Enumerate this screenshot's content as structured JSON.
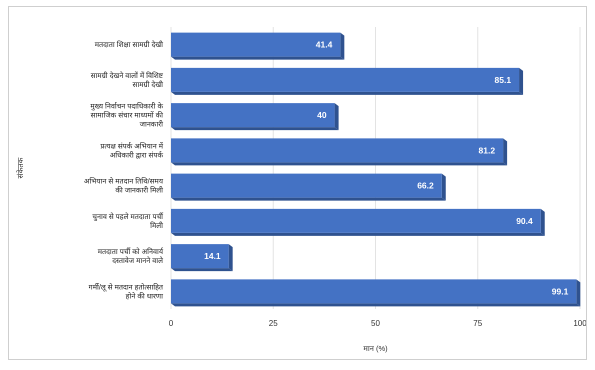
{
  "chart_data": {
    "type": "bar",
    "orientation": "horizontal",
    "title": "",
    "xlabel": "मान (%)",
    "ylabel": "संकेतक",
    "xlim": [
      0,
      100
    ],
    "x_ticks": [
      "0",
      "25",
      "50",
      "75",
      "100"
    ],
    "grid": true,
    "categories": [
      [
        "मतदाता शिक्षा सामग्री देखी"
      ],
      [
        "सामग्री देखने वालों में विशिष्ट",
        "सामग्री देखी"
      ],
      [
        "मुख्य निर्वाचन पदाधिकारी के",
        "सामाजिक संचार माध्यमों की",
        "जानकारी"
      ],
      [
        "प्रत्यक्ष संपर्क अभियान में",
        "अधिकारी द्वारा संपर्क"
      ],
      [
        "अभियान से मतदान तिथि/समय",
        "की जानकारी मिली"
      ],
      [
        "चुनाव से पहले मतदाता पर्ची",
        "मिली"
      ],
      [
        "मतदाता पर्ची को अनिवार्य",
        "दस्तावेज मानने वाले"
      ],
      [
        "गर्मी/लू से मतदान हतोत्साहित",
        "होने की धारणा"
      ]
    ],
    "values": [
      41.4,
      85.1,
      40,
      81.2,
      66.2,
      90.4,
      14.1,
      99.1
    ],
    "value_labels": [
      "41.4",
      "85.1",
      "40",
      "81.2",
      "66.2",
      "90.4",
      "14.1",
      "99.1"
    ],
    "bar_color": "#4472c4",
    "bar_shade_color": "#2f528f"
  }
}
